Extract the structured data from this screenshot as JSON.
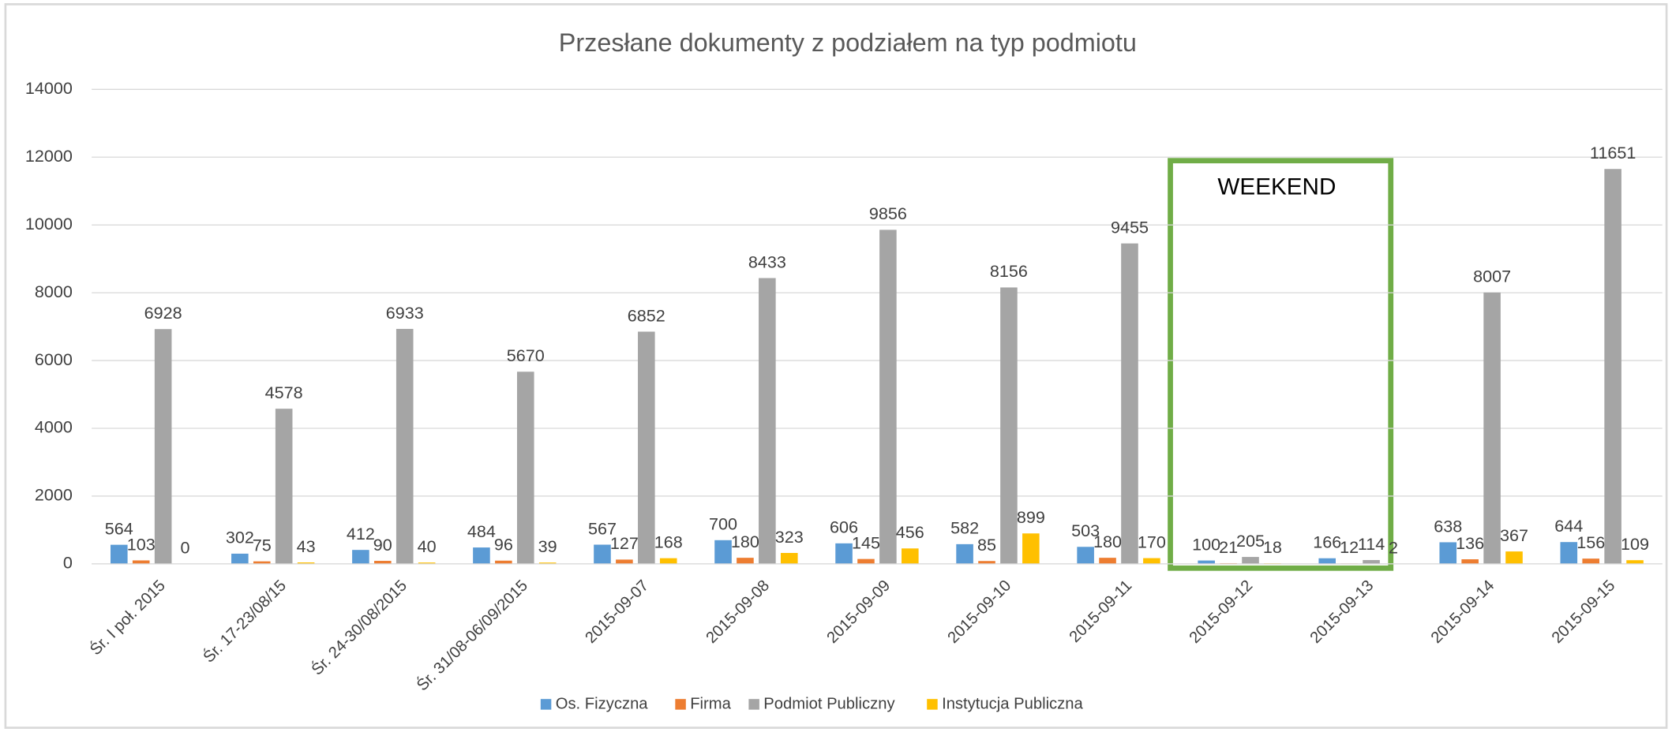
{
  "chart_data": {
    "type": "bar",
    "title": "Przesłane dokumenty z podziałem na typ podmiotu",
    "annotation": "WEEKEND",
    "categories": [
      "Śr. I poł. 2015",
      "Śr. 17-23/08/15",
      "Śr. 24-30/08/2015",
      "Śr. 31/08-06/09/2015",
      "2015-09-07",
      "2015-09-08",
      "2015-09-09",
      "2015-09-10",
      "2015-09-11",
      "2015-09-12",
      "2015-09-13",
      "2015-09-14",
      "2015-09-15"
    ],
    "series": [
      {
        "name": "Os. Fizyczna",
        "color": "#5b9bd5",
        "values": [
          564,
          302,
          412,
          484,
          567,
          700,
          606,
          582,
          503,
          100,
          166,
          638,
          644
        ]
      },
      {
        "name": "Firma",
        "color": "#ed7d31",
        "values": [
          103,
          75,
          90,
          96,
          127,
          180,
          145,
          85,
          180,
          21,
          12,
          136,
          156
        ]
      },
      {
        "name": "Podmiot Publiczny",
        "color": "#a5a5a5",
        "values": [
          6928,
          4578,
          6933,
          5670,
          6852,
          8433,
          9856,
          8156,
          9455,
          205,
          114,
          8007,
          11651
        ]
      },
      {
        "name": "Instytucja Publiczna",
        "color": "#ffc000",
        "values": [
          0,
          43,
          40,
          39,
          168,
          323,
          456,
          899,
          170,
          18,
          2,
          367,
          109
        ]
      }
    ],
    "ylim": [
      0,
      14000
    ],
    "yticks": [
      0,
      2000,
      4000,
      6000,
      8000,
      10000,
      12000,
      14000
    ],
    "grid": true,
    "legend": "bottom"
  }
}
